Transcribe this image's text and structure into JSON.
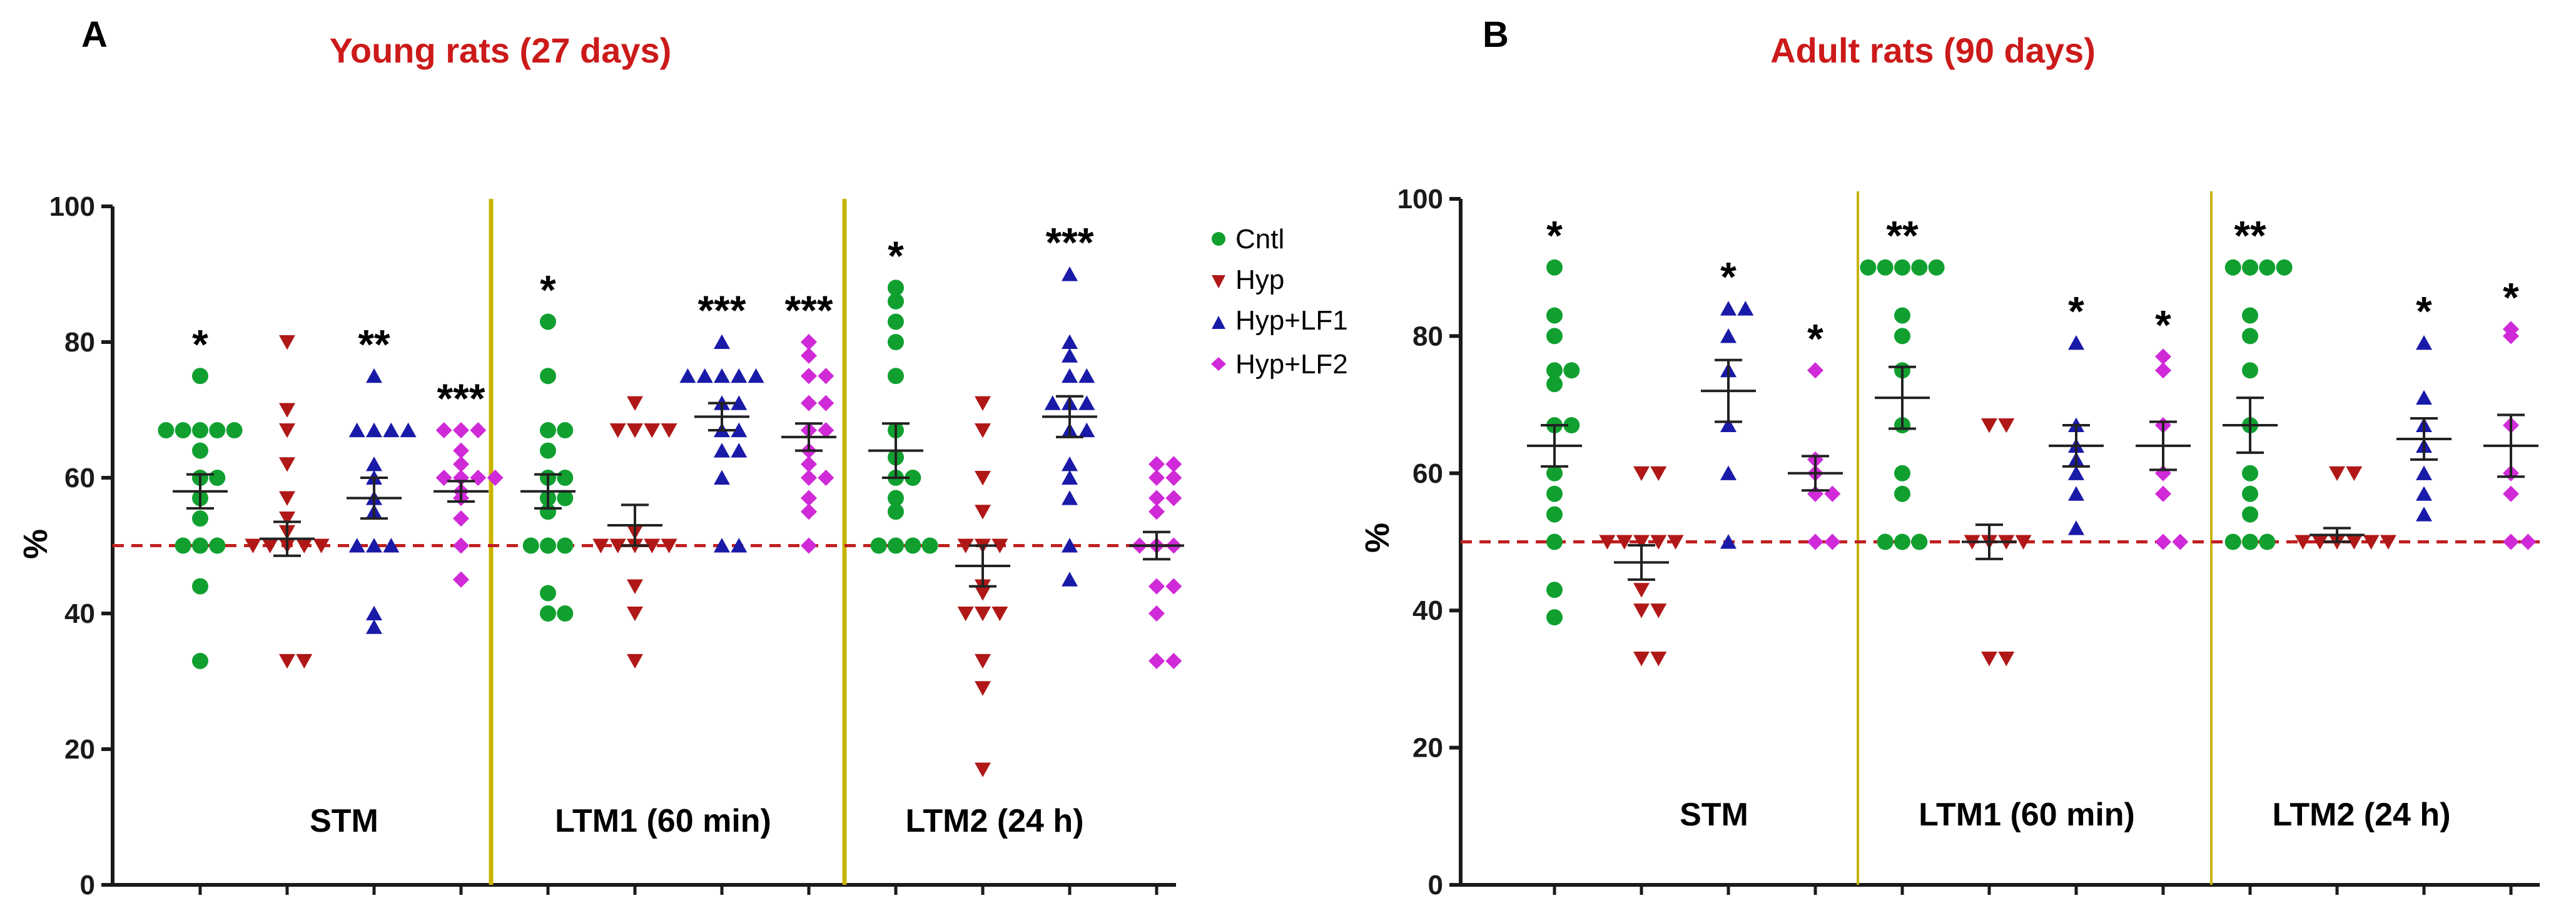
{
  "chart_data": [
    {
      "panel": "A",
      "type": "scatter",
      "title": "Young rats (27 days)",
      "ylabel": "%",
      "ylim": [
        0,
        100
      ],
      "yticks": [
        0,
        20,
        40,
        60,
        80,
        100
      ],
      "chance_level": 50,
      "segments": [
        "STM",
        "LTM1 (60 min)",
        "LTM2 (24 h)"
      ],
      "groups": [
        {
          "segment": "STM",
          "series": "Cntl",
          "mean": 58,
          "sem": 2.5,
          "sig": "*",
          "points": [
            75,
            67,
            67,
            67,
            67,
            67,
            64,
            60,
            60,
            57,
            54,
            50,
            50,
            50,
            44,
            33
          ]
        },
        {
          "segment": "STM",
          "series": "Hyp",
          "mean": 51,
          "sem": 2.5,
          "sig": "",
          "points": [
            80,
            70,
            67,
            62,
            57,
            54,
            52,
            50,
            50,
            50,
            50,
            50,
            33,
            33
          ]
        },
        {
          "segment": "STM",
          "series": "Hyp+LF1",
          "mean": 57,
          "sem": 3,
          "sig": "**",
          "points": [
            75,
            67,
            67,
            67,
            67,
            62,
            60,
            57,
            55,
            50,
            50,
            50,
            40,
            38
          ]
        },
        {
          "segment": "STM",
          "series": "Hyp+LF2",
          "mean": 58,
          "sem": 1.5,
          "sig": "***",
          "points": [
            67,
            67,
            67,
            64,
            62,
            60,
            60,
            60,
            60,
            58,
            57,
            54,
            50,
            45
          ]
        },
        {
          "segment": "LTM1 (60 min)",
          "series": "Cntl",
          "mean": 58,
          "sem": 2.5,
          "sig": "*",
          "points": [
            83,
            75,
            67,
            67,
            64,
            60,
            60,
            57,
            57,
            55,
            50,
            50,
            50,
            43,
            40,
            40
          ]
        },
        {
          "segment": "LTM1 (60 min)",
          "series": "Hyp",
          "mean": 53,
          "sem": 3,
          "sig": "",
          "points": [
            71,
            67,
            67,
            67,
            67,
            52,
            50,
            50,
            50,
            50,
            50,
            44,
            40,
            33
          ]
        },
        {
          "segment": "LTM1 (60 min)",
          "series": "Hyp+LF1",
          "mean": 69,
          "sem": 2,
          "sig": "***",
          "points": [
            80,
            75,
            75,
            75,
            75,
            75,
            71,
            71,
            67,
            67,
            64,
            64,
            60,
            50,
            50
          ]
        },
        {
          "segment": "LTM1 (60 min)",
          "series": "Hyp+LF2",
          "mean": 66,
          "sem": 2,
          "sig": "***",
          "points": [
            80,
            78,
            75,
            75,
            71,
            71,
            67,
            67,
            64,
            62,
            60,
            60,
            57,
            55,
            50
          ]
        },
        {
          "segment": "LTM2 (24 h)",
          "series": "Cntl",
          "mean": 64,
          "sem": 4,
          "sig": "*",
          "points": [
            88,
            86,
            83,
            80,
            75,
            67,
            63,
            60,
            60,
            57,
            55,
            50,
            50,
            50,
            50
          ]
        },
        {
          "segment": "LTM2 (24 h)",
          "series": "Hyp",
          "mean": 47,
          "sem": 3,
          "sig": "",
          "points": [
            71,
            67,
            60,
            55,
            50,
            50,
            50,
            44,
            43,
            40,
            40,
            40,
            33,
            29,
            17
          ]
        },
        {
          "segment": "LTM2 (24 h)",
          "series": "Hyp+LF1",
          "mean": 69,
          "sem": 3,
          "sig": "***",
          "points": [
            90,
            80,
            78,
            75,
            75,
            71,
            71,
            71,
            67,
            67,
            62,
            60,
            57,
            50,
            45
          ]
        },
        {
          "segment": "LTM2 (24 h)",
          "series": "Hyp+LF2",
          "mean": 50,
          "sem": 2,
          "sig": "",
          "points": [
            62,
            62,
            60,
            60,
            57,
            57,
            55,
            50,
            50,
            50,
            44,
            44,
            40,
            33,
            33
          ]
        }
      ]
    },
    {
      "panel": "B",
      "type": "scatter",
      "title": "Adult rats (90 days)",
      "ylabel": "%",
      "ylim": [
        0,
        100
      ],
      "yticks": [
        0,
        20,
        40,
        60,
        80,
        100
      ],
      "chance_level": 50,
      "segments": [
        "STM",
        "LTM1 (60 min)",
        "LTM2 (24 h)"
      ],
      "groups": [
        {
          "segment": "STM",
          "series": "Cntl",
          "mean": 64,
          "sem": 3,
          "sig": "*",
          "points": [
            90,
            83,
            80,
            75,
            75,
            73,
            67,
            67,
            60,
            57,
            54,
            50,
            43,
            39
          ]
        },
        {
          "segment": "STM",
          "series": "Hyp",
          "mean": 47,
          "sem": 2.5,
          "sig": "",
          "points": [
            60,
            60,
            50,
            50,
            50,
            50,
            50,
            43,
            40,
            40,
            33,
            33
          ]
        },
        {
          "segment": "STM",
          "series": "Hyp+LF1",
          "mean": 72,
          "sem": 4.5,
          "sig": "*",
          "points": [
            84,
            84,
            80,
            75,
            67,
            60,
            50
          ]
        },
        {
          "segment": "STM",
          "series": "Hyp+LF2",
          "mean": 60,
          "sem": 2.5,
          "sig": "*",
          "points": [
            75,
            62,
            60,
            57,
            57,
            50,
            50
          ]
        },
        {
          "segment": "LTM1 (60 min)",
          "series": "Cntl",
          "mean": 71,
          "sem": 4.5,
          "sig": "**",
          "points": [
            90,
            90,
            90,
            90,
            90,
            83,
            80,
            75,
            67,
            60,
            57,
            50,
            50,
            50
          ]
        },
        {
          "segment": "LTM1 (60 min)",
          "series": "Hyp",
          "mean": 50,
          "sem": 2.5,
          "sig": "",
          "points": [
            67,
            67,
            50,
            50,
            50,
            50,
            33,
            33
          ]
        },
        {
          "segment": "LTM1 (60 min)",
          "series": "Hyp+LF1",
          "mean": 64,
          "sem": 3,
          "sig": "*",
          "points": [
            79,
            67,
            64,
            62,
            60,
            57,
            52
          ]
        },
        {
          "segment": "LTM1 (60 min)",
          "series": "Hyp+LF2",
          "mean": 64,
          "sem": 3.5,
          "sig": "*",
          "points": [
            77,
            75,
            67,
            60,
            57,
            50,
            50
          ]
        },
        {
          "segment": "LTM2 (24 h)",
          "series": "Cntl",
          "mean": 67,
          "sem": 4,
          "sig": "**",
          "points": [
            90,
            90,
            90,
            90,
            83,
            80,
            75,
            67,
            60,
            57,
            54,
            50,
            50,
            50
          ]
        },
        {
          "segment": "LTM2 (24 h)",
          "series": "Hyp",
          "mean": 51,
          "sem": 1,
          "sig": "",
          "points": [
            60,
            60,
            50,
            50,
            50,
            50,
            50,
            50
          ]
        },
        {
          "segment": "LTM2 (24 h)",
          "series": "Hyp+LF1",
          "mean": 65,
          "sem": 3,
          "sig": "*",
          "points": [
            79,
            71,
            67,
            64,
            60,
            57,
            54
          ]
        },
        {
          "segment": "LTM2 (24 h)",
          "series": "Hyp+LF2",
          "mean": 64,
          "sem": 4.5,
          "sig": "*",
          "points": [
            81,
            80,
            67,
            60,
            57,
            50,
            50
          ]
        }
      ]
    }
  ],
  "legend": [
    {
      "label": "Cntl",
      "color": "#11a030",
      "marker": "circle"
    },
    {
      "label": "Hyp",
      "color": "#b01818",
      "marker": "triangle-down"
    },
    {
      "label": "Hyp+LF1",
      "color": "#1a1aa8",
      "marker": "triangle-up"
    },
    {
      "label": "Hyp+LF2",
      "color": "#d02ad8",
      "marker": "diamond"
    }
  ],
  "colors": {
    "chance_line": "#c02020",
    "separator": "#c8b400",
    "title": "#cc1a1a",
    "axis": "#1a1a1a"
  }
}
